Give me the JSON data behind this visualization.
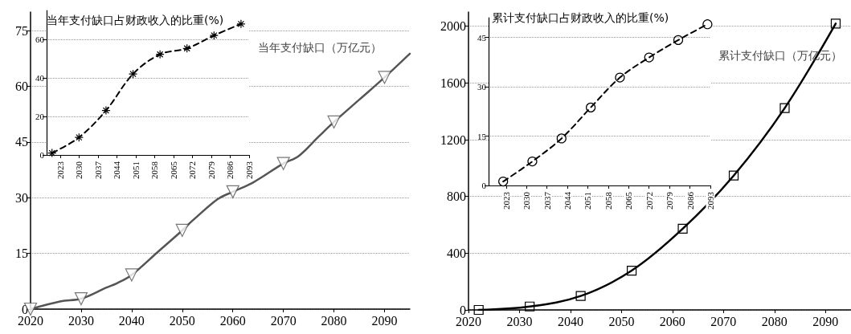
{
  "chart_data": [
    {
      "type": "line",
      "xlim": [
        2020,
        2095
      ],
      "xticks": [
        2020,
        2030,
        2040,
        2050,
        2060,
        2070,
        2080,
        2090
      ],
      "ylim": [
        0,
        80
      ],
      "yticks": [
        0,
        15,
        30,
        45,
        60,
        75
      ],
      "grid": "y",
      "annotations": [
        "当年支付缺口（万亿元）"
      ],
      "series": [
        {
          "type": "line",
          "color": "#555555",
          "marker": "none",
          "x": [
            2020,
            2026,
            2030,
            2035,
            2037,
            2040,
            2045,
            2050,
            2052,
            2057,
            2060,
            2064,
            2070,
            2073,
            2077,
            2080,
            2085,
            2090,
            2095
          ],
          "values": [
            0,
            2.1,
            2.8,
            5.8,
            6.9,
            9.2,
            15.2,
            21.2,
            23.8,
            29.6,
            31.6,
            34.1,
            39.2,
            41.2,
            46.5,
            50.4,
            56.4,
            62.4,
            68.8
          ]
        },
        {
          "type": "scatter",
          "color": "#555555",
          "marker": "triangle",
          "x": [
            2020,
            2030,
            2040,
            2050,
            2060,
            2070,
            2080,
            2090
          ],
          "values": [
            0,
            2.8,
            9.2,
            21.2,
            31.6,
            39.2,
            50.4,
            62.4
          ]
        }
      ]
    },
    {
      "type": "line",
      "title": "当年支付缺口占财政收入的比重(%)",
      "xlim": [
        2018,
        2093
      ],
      "xticks": [
        2023,
        2030,
        2037,
        2044,
        2051,
        2058,
        2065,
        2072,
        2079,
        2086,
        2093
      ],
      "ylim": [
        0,
        75
      ],
      "yticks": [
        0,
        20,
        40,
        60
      ],
      "grid": "y",
      "marker": "cross",
      "line_style": "dashed",
      "series": [
        {
          "color": "#000000",
          "x": [
            2020,
            2030,
            2040,
            2050,
            2060,
            2070,
            2080,
            2090
          ],
          "values": [
            1,
            9.1,
            23.1,
            42,
            52.2,
            55.3,
            62,
            68
          ]
        }
      ]
    },
    {
      "type": "line",
      "xlim": [
        2020,
        2095
      ],
      "xticks": [
        2020,
        2030,
        2040,
        2050,
        2060,
        2070,
        2080,
        2090
      ],
      "ylim": [
        0,
        2100
      ],
      "yticks": [
        0,
        400,
        800,
        1200,
        1600,
        2000
      ],
      "grid": "y",
      "marker": "square",
      "annotations": [
        "累计支付缺口（万亿元）"
      ],
      "series": [
        {
          "color": "#000000",
          "x": [
            2022,
            2032,
            2042,
            2052,
            2062,
            2072,
            2082,
            2092
          ],
          "values": [
            0,
            24,
            98,
            277,
            572,
            947,
            1423,
            2019
          ]
        }
      ]
    },
    {
      "type": "line",
      "title": "累计支付缺口占财政收入的比重(%)",
      "xlim": [
        2017,
        2093
      ],
      "xticks": [
        2023,
        2030,
        2037,
        2044,
        2051,
        2058,
        2065,
        2072,
        2079,
        2086,
        2093
      ],
      "ylim": [
        0,
        51
      ],
      "yticks": [
        0,
        15,
        30,
        45
      ],
      "grid": "y",
      "marker": "circle",
      "line_style": "dashed",
      "series": [
        {
          "color": "#000000",
          "x": [
            2022,
            2032,
            2042,
            2052,
            2062,
            2072,
            2082,
            2092
          ],
          "values": [
            1.2,
            7.3,
            14.3,
            23.7,
            32.8,
            38.9,
            44.2,
            49
          ]
        }
      ]
    }
  ]
}
